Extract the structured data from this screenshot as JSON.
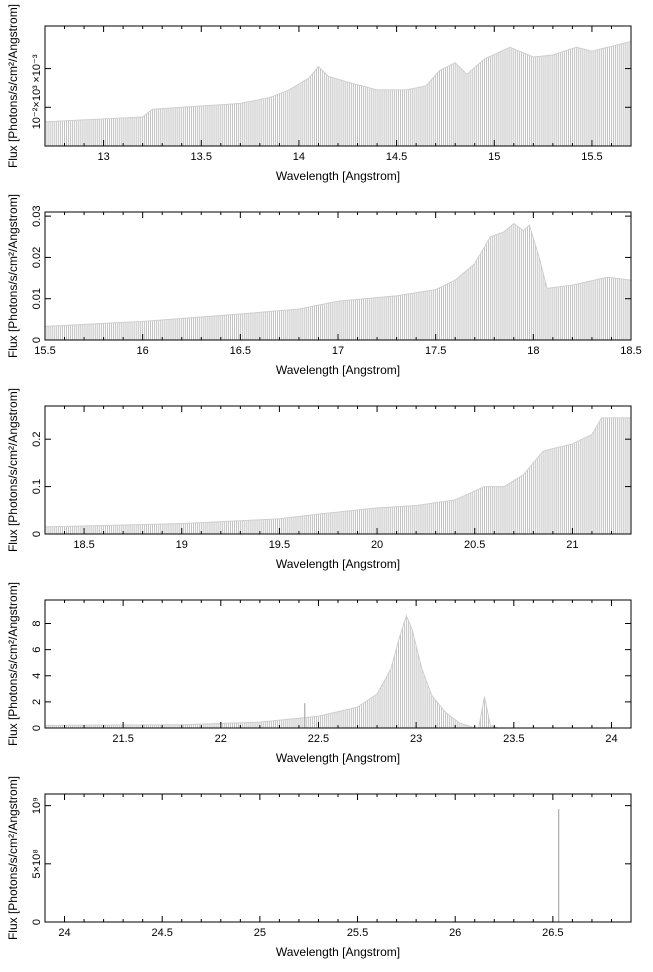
{
  "chart_data": [
    {
      "type": "bar",
      "xlabel": "Wavelength [Angstrom]",
      "ylabel": "Flux [Photons/s/cm²/Angstrom]",
      "xlim": [
        12.7,
        15.7
      ],
      "ylim": [
        0,
        0.0062
      ],
      "xticks": [
        13,
        13.5,
        14,
        14.5,
        15,
        15.5
      ],
      "xtick_labels": [
        "13",
        "13.5",
        "14",
        "14.5",
        "15",
        "15.5"
      ],
      "yticks": [
        0.002,
        0.004
      ],
      "ytick_labels": [
        "10⁻²×10³",
        "×10⁻³"
      ],
      "profile": [
        [
          12.7,
          0.00125
        ],
        [
          13.2,
          0.0015
        ],
        [
          13.25,
          0.0019
        ],
        [
          13.55,
          0.0021
        ],
        [
          13.7,
          0.0022
        ],
        [
          13.85,
          0.0025
        ],
        [
          13.95,
          0.0029
        ],
        [
          14.05,
          0.0035
        ],
        [
          14.1,
          0.0041
        ],
        [
          14.15,
          0.0036
        ],
        [
          14.25,
          0.0033
        ],
        [
          14.4,
          0.0029
        ],
        [
          14.55,
          0.0029
        ],
        [
          14.65,
          0.0031
        ],
        [
          14.72,
          0.0039
        ],
        [
          14.8,
          0.0043
        ],
        [
          14.86,
          0.0037
        ],
        [
          14.95,
          0.0045
        ],
        [
          15.08,
          0.0051
        ],
        [
          15.2,
          0.0046
        ],
        [
          15.3,
          0.0047
        ],
        [
          15.42,
          0.0051
        ],
        [
          15.5,
          0.0049
        ],
        [
          15.7,
          0.0054
        ]
      ]
    },
    {
      "type": "bar",
      "xlabel": "Wavelength [Angstrom]",
      "ylabel": "Flux [Photons/s/cm²/Angstrom]",
      "xlim": [
        15.5,
        18.5
      ],
      "ylim": [
        0,
        0.031
      ],
      "xticks": [
        15.5,
        16,
        16.5,
        17,
        17.5,
        18,
        18.5
      ],
      "xtick_labels": [
        "15.5",
        "16",
        "16.5",
        "17",
        "17.5",
        "18",
        "18.5"
      ],
      "yticks": [
        0,
        0.01,
        0.02,
        0.03
      ],
      "ytick_labels": [
        "0",
        "0.01",
        "0.02",
        "0.03"
      ],
      "profile": [
        [
          15.5,
          0.0033
        ],
        [
          16.0,
          0.0045
        ],
        [
          16.5,
          0.0063
        ],
        [
          16.8,
          0.0075
        ],
        [
          17.0,
          0.0094
        ],
        [
          17.3,
          0.0107
        ],
        [
          17.5,
          0.0122
        ],
        [
          17.6,
          0.0145
        ],
        [
          17.7,
          0.0185
        ],
        [
          17.78,
          0.025
        ],
        [
          17.85,
          0.0262
        ],
        [
          17.9,
          0.0282
        ],
        [
          17.95,
          0.0265
        ],
        [
          17.98,
          0.0278
        ],
        [
          18.03,
          0.02
        ],
        [
          18.07,
          0.0125
        ],
        [
          18.2,
          0.0133
        ],
        [
          18.38,
          0.0152
        ],
        [
          18.5,
          0.0145
        ]
      ]
    },
    {
      "type": "bar",
      "xlabel": "Wavelength [Angstrom]",
      "ylabel": "Flux [Photons/s/cm²/Angstrom]",
      "xlim": [
        18.3,
        21.3
      ],
      "ylim": [
        0,
        0.27
      ],
      "xticks": [
        18.5,
        19,
        19.5,
        20,
        20.5,
        21
      ],
      "xtick_labels": [
        "18.5",
        "19",
        "19.5",
        "20",
        "20.5",
        "21"
      ],
      "yticks": [
        0,
        0.1,
        0.2
      ],
      "ytick_labels": [
        "0",
        "0.1",
        "0.2"
      ],
      "profile": [
        [
          18.3,
          0.015
        ],
        [
          19.0,
          0.022
        ],
        [
          19.5,
          0.032
        ],
        [
          19.7,
          0.042
        ],
        [
          20.0,
          0.055
        ],
        [
          20.2,
          0.06
        ],
        [
          20.4,
          0.072
        ],
        [
          20.55,
          0.1
        ],
        [
          20.65,
          0.1
        ],
        [
          20.75,
          0.125
        ],
        [
          20.85,
          0.175
        ],
        [
          21.0,
          0.19
        ],
        [
          21.1,
          0.21
        ],
        [
          21.15,
          0.245
        ],
        [
          21.3,
          0.245
        ]
      ]
    },
    {
      "type": "bar",
      "xlabel": "Wavelength [Angstrom]",
      "ylabel": "Flux [Photons/s/cm²/Angstrom]",
      "xlim": [
        21.1,
        24.1
      ],
      "ylim": [
        0,
        9.8
      ],
      "xticks": [
        21.5,
        22,
        22.5,
        23,
        23.5,
        24
      ],
      "xtick_labels": [
        "21.5",
        "22",
        "22.5",
        "23",
        "23.5",
        "24"
      ],
      "yticks": [
        0,
        2,
        4,
        6,
        8
      ],
      "ytick_labels": [
        "0",
        "2",
        "4",
        "6",
        "8"
      ],
      "profile": [
        [
          21.1,
          0.2
        ],
        [
          21.8,
          0.25
        ],
        [
          22.2,
          0.45
        ],
        [
          22.5,
          0.9
        ],
        [
          22.7,
          1.6
        ],
        [
          22.8,
          2.6
        ],
        [
          22.87,
          4.5
        ],
        [
          22.92,
          7.2
        ],
        [
          22.95,
          8.6
        ],
        [
          22.98,
          7.5
        ],
        [
          23.03,
          4.5
        ],
        [
          23.08,
          2.5
        ],
        [
          23.15,
          1.2
        ],
        [
          23.22,
          0.4
        ],
        [
          23.28,
          0.1
        ],
        [
          23.3,
          0.0
        ],
        [
          23.32,
          0.0
        ],
        [
          23.35,
          2.4
        ],
        [
          23.38,
          0.2
        ],
        [
          23.42,
          0.0
        ],
        [
          24.1,
          0.0
        ]
      ],
      "spikes": [
        {
          "x": 22.43,
          "y": 1.9
        }
      ]
    },
    {
      "type": "bar",
      "xlabel": "Wavelength [Angstrom]",
      "ylabel": "Flux [Photons/s/cm²/Angstrom]",
      "xlim": [
        23.9,
        26.9
      ],
      "ylim": [
        0,
        1100000000
      ],
      "xticks": [
        24,
        24.5,
        25,
        25.5,
        26,
        26.5
      ],
      "xtick_labels": [
        "24",
        "24.5",
        "25",
        "25.5",
        "26",
        "26.5"
      ],
      "yticks": [
        0,
        500000000,
        1000000000
      ],
      "ytick_labels": [
        "0",
        "5×10⁸",
        "10⁹"
      ],
      "profile": [
        [
          23.9,
          0
        ],
        [
          26.9,
          0
        ]
      ],
      "spikes": [
        {
          "x": 26.53,
          "y": 970000000
        }
      ]
    }
  ]
}
